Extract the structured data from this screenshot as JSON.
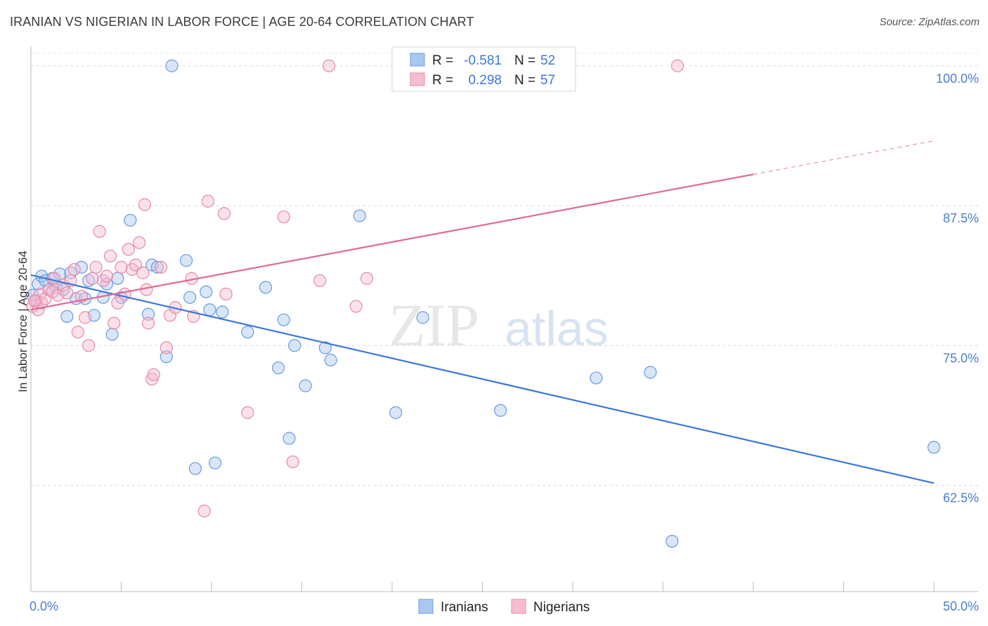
{
  "title": "IRANIAN VS NIGERIAN IN LABOR FORCE | AGE 20-64 CORRELATION CHART",
  "source": "Source: ZipAtlas.com",
  "watermark": {
    "part1": "ZIP",
    "part2": "atlas"
  },
  "legend_top": [
    {
      "r_label": "R =",
      "r_value": "-0.581",
      "n_label": "N =",
      "n_value": "52",
      "color": "#a9c8f0",
      "stroke": "#6a9be0"
    },
    {
      "r_label": "R =",
      "r_value": "0.298",
      "n_label": "N =",
      "n_value": "57",
      "color": "#f7bcd0",
      "stroke": "#e58aa8"
    }
  ],
  "legend_bottom": [
    {
      "label": "Iranians",
      "color": "#a9c8f0",
      "stroke": "#6a9be0"
    },
    {
      "label": "Nigerians",
      "color": "#f7bcd0",
      "stroke": "#e58aa8"
    }
  ],
  "chart_data": {
    "type": "scatter",
    "xlabel": "",
    "ylabel": "In Labor Force | Age 20-64",
    "xlim": [
      0,
      50
    ],
    "ylim": [
      0.53,
      1.02
    ],
    "x_tick_labels": [
      {
        "value": 0,
        "label": "0.0%"
      },
      {
        "value": 50,
        "label": "50.0%"
      }
    ],
    "y_ticks": [
      {
        "value": 1.0,
        "label": "100.0%"
      },
      {
        "value": 0.875,
        "label": "87.5%"
      },
      {
        "value": 0.75,
        "label": "75.0%"
      },
      {
        "value": 0.625,
        "label": "62.5%"
      }
    ],
    "grid": "horizontal dashed",
    "series": [
      {
        "name": "Iranians",
        "color": "#3c78d8",
        "fill": "#a9c8f0",
        "trend": {
          "x0": 0,
          "y0": 0.813,
          "x1": 50,
          "y1": 0.627
        },
        "points": [
          [
            0.1,
            0.795
          ],
          [
            0.3,
            0.79
          ],
          [
            0.4,
            0.805
          ],
          [
            0.6,
            0.812
          ],
          [
            0.8,
            0.808
          ],
          [
            1.0,
            0.8
          ],
          [
            1.2,
            0.81
          ],
          [
            1.4,
            0.802
          ],
          [
            1.6,
            0.814
          ],
          [
            1.8,
            0.8
          ],
          [
            2.0,
            0.776
          ],
          [
            2.2,
            0.815
          ],
          [
            2.5,
            0.792
          ],
          [
            2.8,
            0.82
          ],
          [
            3.0,
            0.792
          ],
          [
            3.2,
            0.808
          ],
          [
            3.5,
            0.777
          ],
          [
            4.0,
            0.793
          ],
          [
            4.2,
            0.805
          ],
          [
            4.5,
            0.76
          ],
          [
            4.8,
            0.81
          ],
          [
            5.0,
            0.793
          ],
          [
            5.5,
            0.862
          ],
          [
            6.5,
            0.778
          ],
          [
            6.7,
            0.822
          ],
          [
            7.0,
            0.82
          ],
          [
            7.5,
            0.74
          ],
          [
            8.6,
            0.826
          ],
          [
            8.8,
            0.793
          ],
          [
            9.1,
            0.64
          ],
          [
            9.7,
            0.798
          ],
          [
            9.9,
            0.782
          ],
          [
            10.2,
            0.645
          ],
          [
            10.6,
            0.78
          ],
          [
            12.0,
            0.762
          ],
          [
            13.0,
            0.802
          ],
          [
            13.7,
            0.73
          ],
          [
            14.0,
            0.773
          ],
          [
            14.3,
            0.667
          ],
          [
            14.6,
            0.75
          ],
          [
            15.2,
            0.714
          ],
          [
            16.3,
            0.748
          ],
          [
            16.6,
            0.737
          ],
          [
            18.2,
            0.866
          ],
          [
            20.2,
            0.69
          ],
          [
            21.7,
            0.775
          ],
          [
            26.0,
            0.692
          ],
          [
            31.3,
            0.721
          ],
          [
            34.3,
            0.726
          ],
          [
            35.5,
            0.575
          ],
          [
            50.0,
            0.659
          ],
          [
            7.8,
            1.0
          ]
        ]
      },
      {
        "name": "Nigerians",
        "color": "#e0689a",
        "fill": "#f7bcd0",
        "trend": {
          "x0": 0,
          "y0": 0.782,
          "x1": 40,
          "y1": 0.903,
          "dash_x1": 50,
          "dash_y1": 0.933
        },
        "points": [
          [
            0.1,
            0.785
          ],
          [
            0.3,
            0.79
          ],
          [
            0.4,
            0.782
          ],
          [
            0.5,
            0.796
          ],
          [
            0.6,
            0.788
          ],
          [
            0.8,
            0.792
          ],
          [
            1.0,
            0.8
          ],
          [
            1.2,
            0.798
          ],
          [
            1.3,
            0.81
          ],
          [
            1.5,
            0.795
          ],
          [
            1.8,
            0.804
          ],
          [
            2.0,
            0.797
          ],
          [
            2.2,
            0.808
          ],
          [
            2.4,
            0.818
          ],
          [
            2.6,
            0.762
          ],
          [
            2.8,
            0.794
          ],
          [
            3.0,
            0.775
          ],
          [
            3.2,
            0.75
          ],
          [
            3.4,
            0.81
          ],
          [
            3.6,
            0.82
          ],
          [
            3.8,
            0.852
          ],
          [
            4.0,
            0.808
          ],
          [
            4.2,
            0.812
          ],
          [
            4.4,
            0.83
          ],
          [
            4.6,
            0.77
          ],
          [
            4.8,
            0.788
          ],
          [
            5.0,
            0.82
          ],
          [
            5.2,
            0.796
          ],
          [
            5.4,
            0.836
          ],
          [
            5.6,
            0.818
          ],
          [
            5.8,
            0.822
          ],
          [
            6.0,
            0.842
          ],
          [
            6.2,
            0.815
          ],
          [
            6.3,
            0.876
          ],
          [
            6.4,
            0.8
          ],
          [
            6.5,
            0.77
          ],
          [
            6.7,
            0.72
          ],
          [
            6.8,
            0.724
          ],
          [
            7.2,
            0.82
          ],
          [
            7.5,
            0.748
          ],
          [
            7.7,
            0.777
          ],
          [
            8.0,
            0.784
          ],
          [
            8.9,
            0.81
          ],
          [
            9.0,
            0.776
          ],
          [
            9.6,
            0.602
          ],
          [
            9.8,
            0.879
          ],
          [
            10.7,
            0.868
          ],
          [
            10.8,
            0.796
          ],
          [
            12.0,
            0.69
          ],
          [
            14.0,
            0.865
          ],
          [
            14.5,
            0.646
          ],
          [
            16.0,
            0.808
          ],
          [
            18.0,
            0.785
          ],
          [
            18.6,
            0.81
          ],
          [
            16.5,
            1.0
          ],
          [
            35.8,
            1.0
          ],
          [
            0.2,
            0.79
          ]
        ]
      }
    ]
  }
}
